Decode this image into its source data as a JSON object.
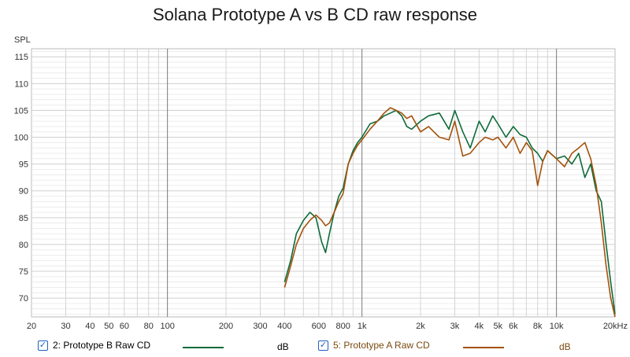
{
  "title": "Solana Prototype A vs B CD raw response",
  "chart_data": {
    "type": "line",
    "title": "Solana Prototype A vs B CD raw response",
    "ylabel": "SPL",
    "xlabel": "",
    "x_scale": "log",
    "xlim": [
      20,
      20000
    ],
    "ylim": [
      66.5,
      116.5
    ],
    "grid": true,
    "y_ticks": [
      70,
      75,
      80,
      85,
      90,
      95,
      100,
      105,
      110,
      115
    ],
    "x_ticks": [
      {
        "value": 20,
        "label": "20"
      },
      {
        "value": 30,
        "label": "30"
      },
      {
        "value": 40,
        "label": "40"
      },
      {
        "value": 50,
        "label": "50"
      },
      {
        "value": 60,
        "label": "60"
      },
      {
        "value": 80,
        "label": "80"
      },
      {
        "value": 100,
        "label": "100"
      },
      {
        "value": 200,
        "label": "200"
      },
      {
        "value": 300,
        "label": "300"
      },
      {
        "value": 400,
        "label": "400"
      },
      {
        "value": 600,
        "label": "600"
      },
      {
        "value": 800,
        "label": "800"
      },
      {
        "value": 1000,
        "label": "1k"
      },
      {
        "value": 2000,
        "label": "2k"
      },
      {
        "value": 3000,
        "label": "3k"
      },
      {
        "value": 4000,
        "label": "4k"
      },
      {
        "value": 5000,
        "label": "5k"
      },
      {
        "value": 6000,
        "label": "6k"
      },
      {
        "value": 8000,
        "label": "8k"
      },
      {
        "value": 10000,
        "label": "10k"
      },
      {
        "value": 20000,
        "label": "20kHz"
      }
    ],
    "series": [
      {
        "name": "2: Prototype B Raw CD",
        "unit": "dB",
        "color": "#0e6b3a",
        "x": [
          400,
          430,
          460,
          500,
          540,
          580,
          620,
          650,
          680,
          720,
          760,
          800,
          850,
          900,
          950,
          1000,
          1100,
          1200,
          1300,
          1400,
          1500,
          1600,
          1700,
          1800,
          2000,
          2200,
          2500,
          2800,
          3000,
          3300,
          3600,
          4000,
          4300,
          4700,
          5000,
          5500,
          6000,
          6500,
          7000,
          7500,
          8000,
          8500,
          9000,
          10000,
          11000,
          12000,
          13000,
          14000,
          15000,
          16000,
          17000,
          18000,
          19000,
          20000
        ],
        "y": [
          73,
          77,
          82,
          84.5,
          86,
          85,
          80.5,
          78.5,
          82,
          86,
          89,
          90.5,
          95,
          97.5,
          99,
          100,
          102.5,
          103,
          104,
          104.5,
          105,
          104,
          102,
          101.5,
          103,
          104,
          104.5,
          101.5,
          105,
          101,
          98,
          103,
          101,
          104,
          102.5,
          100,
          102,
          100.5,
          100,
          98,
          97,
          95.5,
          97.5,
          96,
          96.5,
          95,
          97,
          92.5,
          95,
          90,
          88,
          80,
          73,
          67
        ]
      },
      {
        "name": "5: Prototype A Raw CD",
        "unit": "dB",
        "color": "#a4520c",
        "x": [
          400,
          430,
          460,
          500,
          540,
          580,
          620,
          650,
          680,
          720,
          760,
          800,
          850,
          900,
          950,
          1000,
          1100,
          1200,
          1300,
          1400,
          1500,
          1600,
          1700,
          1800,
          2000,
          2200,
          2500,
          2800,
          3000,
          3300,
          3600,
          4000,
          4300,
          4700,
          5000,
          5500,
          6000,
          6500,
          7000,
          7500,
          8000,
          8500,
          9000,
          10000,
          11000,
          12000,
          13000,
          14000,
          15000,
          16000,
          17000,
          18000,
          19000,
          20000
        ],
        "y": [
          72,
          76,
          80,
          83,
          84.5,
          85.5,
          84.5,
          83.5,
          84,
          86,
          88,
          89.5,
          95,
          97,
          98.5,
          99.5,
          101.5,
          103,
          104.5,
          105.5,
          105,
          104.5,
          103.5,
          104,
          101,
          102,
          100,
          99.5,
          103,
          96.5,
          97,
          99,
          100,
          99.5,
          100,
          98,
          100,
          97,
          99,
          97.5,
          91,
          95.5,
          97.5,
          96,
          94.5,
          97,
          98,
          99,
          96,
          91,
          84,
          76,
          70,
          66.5
        ]
      }
    ]
  },
  "legend": {
    "items": [
      {
        "label": "2: Prototype B Raw CD",
        "unit": "dB",
        "checked": "✓",
        "color": "#0e6b3a"
      },
      {
        "label": "5: Prototype A Raw CD",
        "unit": "dB",
        "checked": "✓",
        "color": "#a4520c"
      }
    ]
  }
}
